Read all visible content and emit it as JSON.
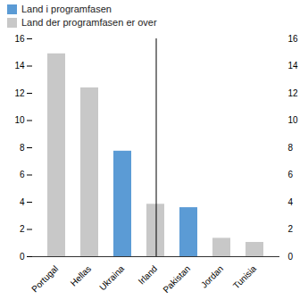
{
  "chart_data": {
    "type": "bar",
    "categories": [
      "Portugal",
      "Hellas",
      "Ukraina",
      "Irland",
      "Pakistan",
      "Jordan",
      "Tunisia"
    ],
    "series": [
      {
        "name": "Land i programfasen",
        "color": "#5b9bd5",
        "values": [
          null,
          null,
          7.75,
          null,
          3.6,
          null,
          null
        ]
      },
      {
        "name": "Land der programfasen er over",
        "color": "#c8c8c8",
        "values": [
          14.9,
          12.4,
          null,
          3.85,
          null,
          1.35,
          1.05
        ]
      }
    ],
    "ylim": [
      0,
      16
    ],
    "yticks": [
      0,
      2,
      4,
      6,
      8,
      10,
      12,
      14,
      16
    ],
    "y2lim": [
      0,
      16
    ],
    "y2ticks": [
      0,
      2,
      4,
      6,
      8,
      10,
      12,
      14,
      16
    ],
    "legend": "upper left",
    "grid": false
  }
}
